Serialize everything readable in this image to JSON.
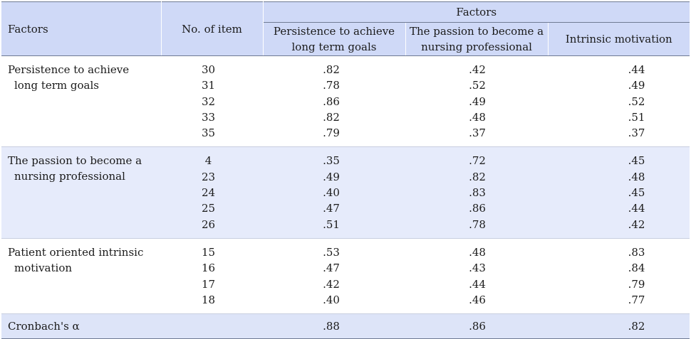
{
  "header": {
    "factors_label": "Factors",
    "items_label": "No. of item",
    "group_label": "Factors",
    "columns": [
      "Persistence to achieve long term goals",
      "The passion to become a nursing professional",
      "Intrinsic motivation"
    ]
  },
  "groups": [
    {
      "name_line1": "Persistence to achieve",
      "name_line2": "long term goals",
      "rows": [
        {
          "item": "30",
          "v1": ".82",
          "v2": ".42",
          "v3": ".44"
        },
        {
          "item": "31",
          "v1": ".78",
          "v2": ".52",
          "v3": ".49"
        },
        {
          "item": "32",
          "v1": ".86",
          "v2": ".49",
          "v3": ".52"
        },
        {
          "item": "33",
          "v1": ".82",
          "v2": ".48",
          "v3": ".51"
        },
        {
          "item": "35",
          "v1": ".79",
          "v2": ".37",
          "v3": ".37"
        }
      ]
    },
    {
      "name_line1": "The passion to become a",
      "name_line2": "nursing professional",
      "rows": [
        {
          "item": "4",
          "v1": ".35",
          "v2": ".72",
          "v3": ".45"
        },
        {
          "item": "23",
          "v1": ".49",
          "v2": ".82",
          "v3": ".48"
        },
        {
          "item": "24",
          "v1": ".40",
          "v2": ".83",
          "v3": ".45"
        },
        {
          "item": "25",
          "v1": ".47",
          "v2": ".86",
          "v3": ".44"
        },
        {
          "item": "26",
          "v1": ".51",
          "v2": ".78",
          "v3": ".42"
        }
      ]
    },
    {
      "name_line1": "Patient oriented intrinsic",
      "name_line2": "motivation",
      "rows": [
        {
          "item": "15",
          "v1": ".53",
          "v2": ".48",
          "v3": ".83"
        },
        {
          "item": "16",
          "v1": ".47",
          "v2": ".43",
          "v3": ".84"
        },
        {
          "item": "17",
          "v1": ".42",
          "v2": ".44",
          "v3": ".79"
        },
        {
          "item": "18",
          "v1": ".40",
          "v2": ".46",
          "v3": ".77"
        }
      ]
    }
  ],
  "cronbach": {
    "label": "Cronbach's α",
    "v1": ".88",
    "v2": ".86",
    "v3": ".82"
  }
}
